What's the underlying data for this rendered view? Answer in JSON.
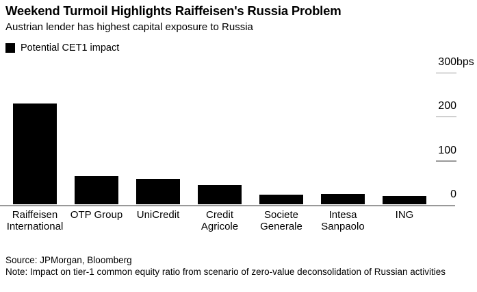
{
  "header": {
    "title": "Weekend Turmoil Highlights Raiffeisen's Russia Problem",
    "subtitle": "Austrian lender has highest capital exposure to Russia"
  },
  "legend": {
    "label": "Potential CET1 impact",
    "marker_color": "#000000"
  },
  "chart_data": {
    "type": "bar",
    "title": "Potential CET1 impact",
    "categories": [
      "Raiffeisen International",
      "OTP Group",
      "UniCredit",
      "Credit Agricole",
      "Societe Generale",
      "Intesa Sanpaolo",
      "ING"
    ],
    "values": [
      230,
      65,
      59,
      44,
      23,
      24,
      19
    ],
    "unit": "bps",
    "xlabel": "",
    "ylabel": "",
    "ylim": [
      0,
      300
    ],
    "yticks": [
      0,
      100,
      200,
      300
    ],
    "ytick_labels": [
      "0",
      "100",
      "200",
      "300bps"
    ],
    "grid": false,
    "legend_position": "top-left",
    "value_axis_side": "right",
    "bar_color": "#000000",
    "axis_color": "#999999"
  },
  "footer": {
    "source": "Source: JPMorgan, Bloomberg",
    "note": "Note: Impact on tier-1 common equity ratio from scenario of zero-value deconsolidation of Russian activities"
  }
}
